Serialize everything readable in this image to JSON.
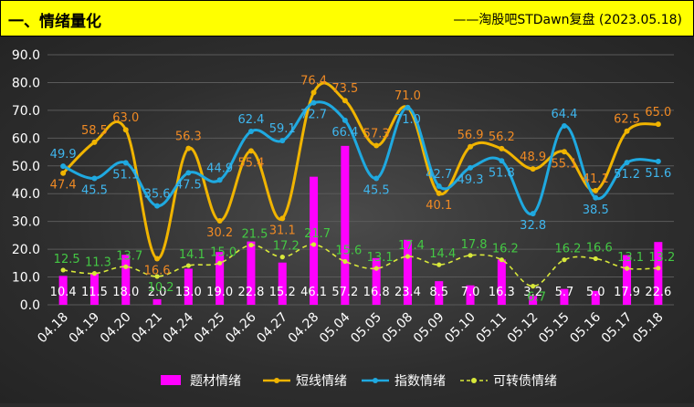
{
  "header": {
    "title": "一、情绪量化",
    "subtitle": "——淘股吧STDawn复盘 (2023.05.18)"
  },
  "colors": {
    "header_bg": "#ffff00",
    "bar": "#ff00ff",
    "short": "#f0b400",
    "index": "#1fa9e0",
    "convert": "#d8e83a",
    "label_short": "#f08a24",
    "label_index": "#3fb6ee",
    "label_convert": "#44c844",
    "label_bar": "#ffffff"
  },
  "chart_data": {
    "type": "bar",
    "title": "",
    "categories": [
      "04.18",
      "04.19",
      "04.20",
      "04.21",
      "04.24",
      "04.25",
      "04.26",
      "04.27",
      "04.28",
      "05.04",
      "05.05",
      "05.08",
      "05.09",
      "05.10",
      "05.11",
      "05.12",
      "05.15",
      "05.16",
      "05.17",
      "05.18"
    ],
    "ylim": [
      0,
      90
    ],
    "yticks": [
      "0.0",
      "10.0",
      "20.0",
      "30.0",
      "40.0",
      "50.0",
      "60.0",
      "70.0",
      "80.0",
      "90.0"
    ],
    "grid": true,
    "legend_position": "bottom",
    "series": [
      {
        "name": "题材情绪",
        "kind": "bar",
        "values": [
          10.4,
          11.5,
          18.0,
          2.0,
          13.0,
          19.0,
          22.8,
          15.2,
          46.1,
          57.2,
          16.8,
          23.4,
          8.5,
          7.0,
          16.3,
          3.2,
          5.7,
          5.0,
          17.9,
          22.6
        ],
        "labels": [
          "10.4",
          "11.5",
          "18.0",
          "2.0",
          "13.0",
          "19.0",
          "22.8",
          "15.2",
          "46.1",
          "57.2",
          "16.8",
          "23.4",
          "8.5",
          "7.0",
          "16.3",
          "3.2",
          "5.7",
          "5.0",
          "17.9",
          "22.6"
        ]
      },
      {
        "name": "短线情绪",
        "kind": "line",
        "values": [
          47.4,
          58.5,
          63.0,
          16.6,
          56.3,
          30.2,
          55.4,
          31.1,
          76.4,
          73.5,
          57.3,
          71.0,
          40.1,
          56.9,
          56.2,
          48.9,
          55.1,
          41.1,
          62.5,
          65.0
        ],
        "labels": [
          "47.4",
          "58.5",
          "63.0",
          "16.6",
          "56.3",
          "30.2",
          "55.4",
          "31.1",
          "76.4",
          "73.5",
          "57.3",
          "71.0",
          "40.1",
          "56.9",
          "56.2",
          "48.9",
          "55.1",
          "41.1",
          "62.5",
          "65.0"
        ]
      },
      {
        "name": "指数情绪",
        "kind": "line",
        "values": [
          49.9,
          45.5,
          51.1,
          35.6,
          47.5,
          44.9,
          62.4,
          59.1,
          72.7,
          66.4,
          45.5,
          71.0,
          42.7,
          49.3,
          51.8,
          32.8,
          64.4,
          38.5,
          51.2,
          51.6
        ],
        "labels": [
          "49.9",
          "45.5",
          "51.1",
          "35.6",
          "47.5",
          "44.9",
          "62.4",
          "59.1",
          "72.7",
          "66.4",
          "45.5",
          "71.0",
          "42.7",
          "49.3",
          "51.8",
          "32.8",
          "64.4",
          "38.5",
          "51.2",
          "51.6"
        ]
      },
      {
        "name": "可转债情绪",
        "kind": "dashed-line",
        "values": [
          12.5,
          11.3,
          13.7,
          10.2,
          14.1,
          15.0,
          21.5,
          17.2,
          21.7,
          15.6,
          13.1,
          17.4,
          14.4,
          17.8,
          16.2,
          6.7,
          16.2,
          16.6,
          13.1,
          13.2
        ],
        "labels": [
          "12.5",
          "11.3",
          "13.7",
          "10.2",
          "14.1",
          "15.0",
          "21.5",
          "17.2",
          "21.7",
          "15.6",
          "13.1",
          "17.4",
          "14.4",
          "17.8",
          "16.2",
          "6.7",
          "16.2",
          "16.6",
          "13.1",
          "13.2"
        ]
      }
    ]
  }
}
